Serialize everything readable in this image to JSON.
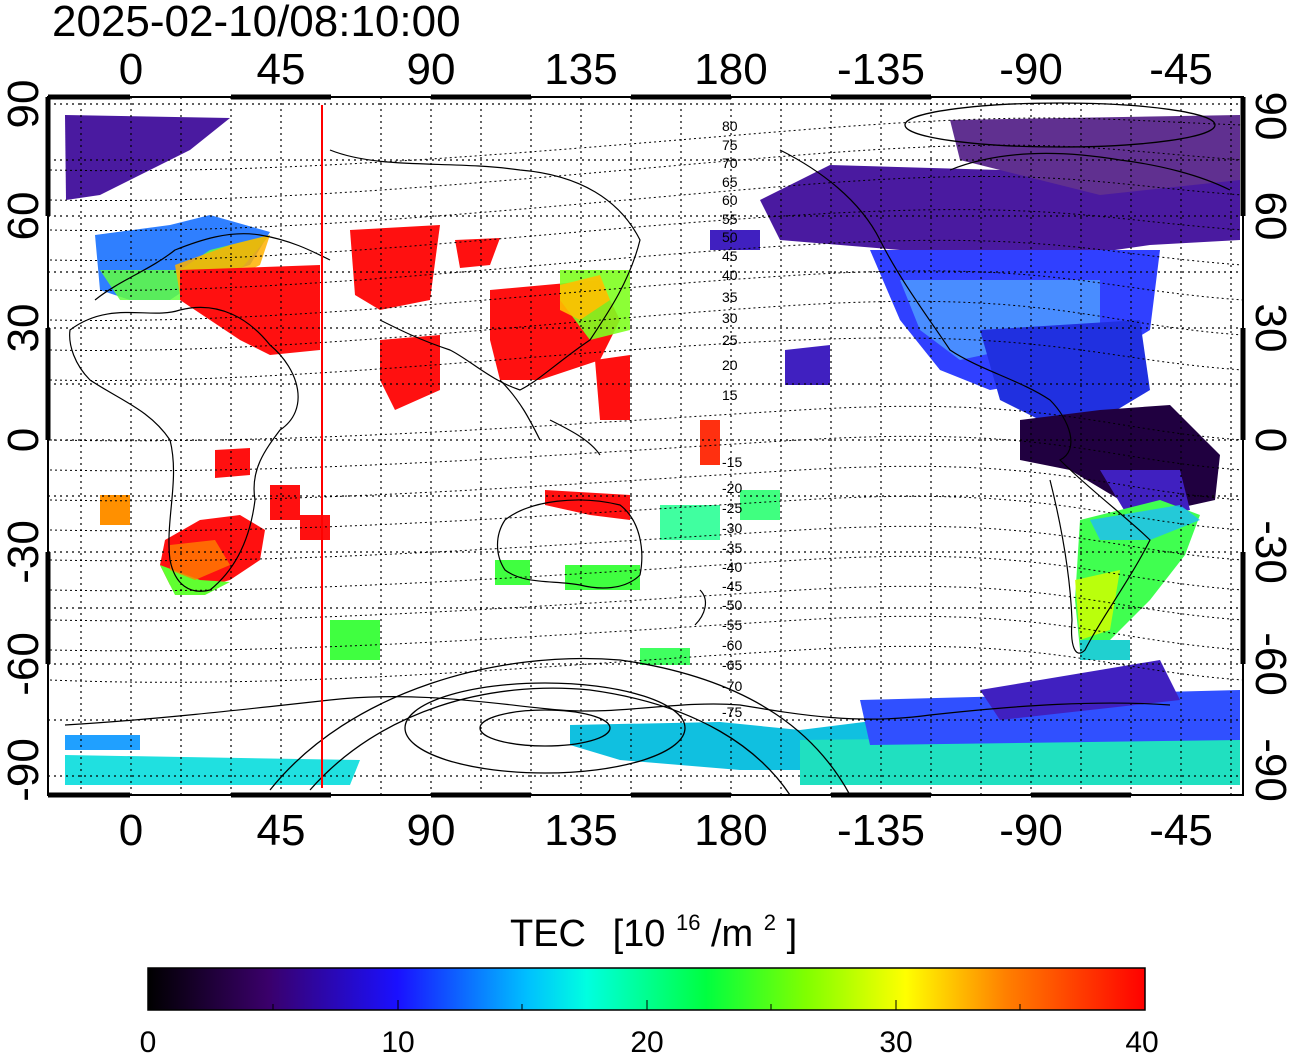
{
  "timestamp": "2025-02-10/08:10:00",
  "lon_ticks": [
    "0",
    "45",
    "90",
    "135",
    "180",
    "-135",
    "-90",
    "-45"
  ],
  "lat_ticks": [
    "90",
    "60",
    "30",
    "0",
    "-30",
    "-60",
    "-90"
  ],
  "mlat_labels": [
    "80",
    "75",
    "70",
    "65",
    "60",
    "55",
    "50",
    "45",
    "40",
    "35",
    "30",
    "25",
    "20",
    "15",
    "-15",
    "-20",
    "-25",
    "-30",
    "-35",
    "-40",
    "-45",
    "-50",
    "-55",
    "-60",
    "-65",
    "-70",
    "-75"
  ],
  "colorbar": {
    "title": "TEC",
    "unit_base": "[10",
    "unit_exp": "16",
    "unit_mid": "/m",
    "unit_exp2": "2",
    "unit_close": "]",
    "ticks": [
      "0",
      "10",
      "20",
      "30",
      "40"
    ],
    "min": 0,
    "max": 40
  },
  "colors": {
    "terminator_line": "#ff0000",
    "coastline": "#000000",
    "grid": "#000000"
  }
}
